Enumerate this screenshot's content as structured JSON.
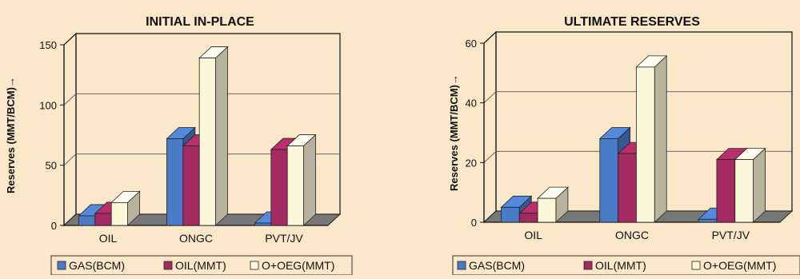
{
  "chart_data": [
    {
      "type": "bar",
      "title": "INITIAL IN-PLACE",
      "ylabel": "Reserves (MMT/BCM)→",
      "xlabel": "",
      "categories": [
        "OIL",
        "ONGC",
        "PVT/JV"
      ],
      "ylim": [
        0,
        150
      ],
      "yticks": [
        0,
        50,
        100,
        150
      ],
      "grid": true,
      "legend_position": "bottom",
      "series": [
        {
          "name": "GAS(BCM)",
          "values": [
            8,
            72,
            2
          ],
          "color": "#4a7bc6"
        },
        {
          "name": "OIL(MMT)",
          "values": [
            10,
            66,
            63
          ],
          "color": "#a52a62"
        },
        {
          "name": "O+OEG(MMT)",
          "values": [
            19,
            139,
            66
          ],
          "color": "#fdf7d9"
        }
      ]
    },
    {
      "type": "bar",
      "title": "ULTIMATE RESERVES",
      "ylabel": "Reserves (MMT/BCM)→",
      "xlabel": "",
      "categories": [
        "OIL",
        "ONGC",
        "PVT/JV"
      ],
      "ylim": [
        0,
        60
      ],
      "yticks": [
        0,
        20,
        40,
        60
      ],
      "grid": true,
      "legend_position": "bottom",
      "series": [
        {
          "name": "GAS(BCM)",
          "values": [
            5,
            28,
            1
          ],
          "color": "#4a7bc6"
        },
        {
          "name": "OIL(MMT)",
          "values": [
            3,
            23,
            21
          ],
          "color": "#a52a62"
        },
        {
          "name": "O+OEG(MMT)",
          "values": [
            8,
            52,
            21
          ],
          "color": "#fdf7d9"
        }
      ]
    }
  ]
}
